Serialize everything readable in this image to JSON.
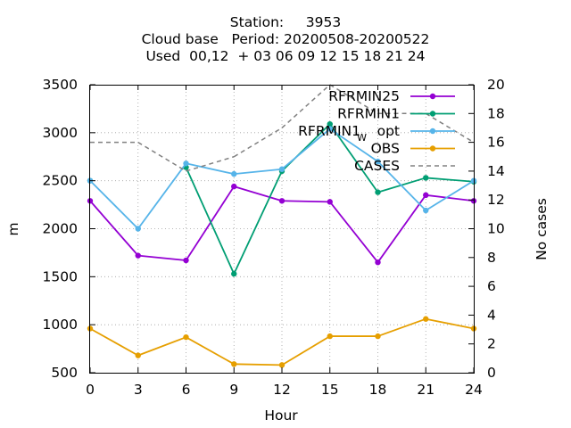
{
  "chart_data": {
    "type": "line",
    "title": [
      "Station:     3953",
      "Cloud base   Period: 20200508-20200522",
      "Used  00,12  + 03 06 09 12 15 18 21 24"
    ],
    "xlabel": "Hour",
    "ylabel": "m",
    "y2label": "No cases",
    "xlim": [
      0,
      24
    ],
    "ylim": [
      500,
      3500
    ],
    "y2lim": [
      0,
      20
    ],
    "x_ticks": [
      0,
      3,
      6,
      9,
      12,
      15,
      18,
      21,
      24
    ],
    "y_ticks": [
      500,
      1000,
      1500,
      2000,
      2500,
      3000,
      3500
    ],
    "y2_ticks": [
      0,
      2,
      4,
      6,
      8,
      10,
      12,
      14,
      16,
      18,
      20
    ],
    "grid": true,
    "legend_position": "top-right",
    "x": [
      0,
      3,
      6,
      9,
      12,
      15,
      18,
      21,
      24
    ],
    "series": [
      {
        "name": "RFRMIN25",
        "axis": "y",
        "color": "#9400d3",
        "style": "line-points",
        "values": [
          2290,
          1720,
          1670,
          2440,
          2290,
          2280,
          1650,
          2350,
          2290
        ]
      },
      {
        "name": "RFRMIN1",
        "axis": "y",
        "color": "#009e73",
        "style": "line-points",
        "values": [
          2500,
          null,
          2640,
          1530,
          2600,
          3090,
          2380,
          2530,
          2490
        ]
      },
      {
        "name_parts": [
          "RFRMIN1",
          "W",
          "opt"
        ],
        "axis": "y",
        "color": "#56b4e9",
        "style": "line-points",
        "values": [
          2500,
          2000,
          2680,
          2570,
          2620,
          3040,
          2700,
          2190,
          2500
        ]
      },
      {
        "name": "OBS",
        "axis": "y",
        "color": "#e69f00",
        "style": "line-points",
        "values": [
          960,
          680,
          870,
          590,
          580,
          880,
          880,
          1060,
          960
        ]
      },
      {
        "name": "CASES",
        "axis": "y2",
        "color": "#808080",
        "style": "dashed",
        "values": [
          16,
          16,
          14,
          15,
          17,
          20,
          18,
          18,
          16
        ]
      }
    ]
  }
}
